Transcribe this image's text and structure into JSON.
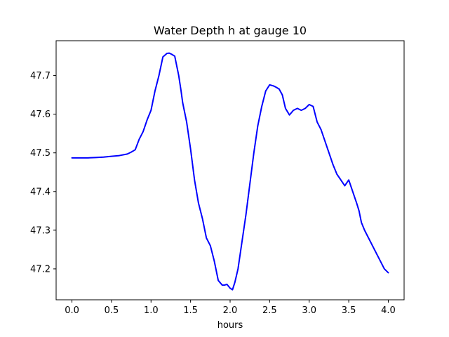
{
  "chart_data": {
    "type": "line",
    "title": "Water Depth h at gauge 10",
    "xlabel": "hours",
    "ylabel": "",
    "xlim": [
      -0.2,
      4.2
    ],
    "ylim": [
      47.12,
      47.79
    ],
    "x_ticks": [
      0.0,
      0.5,
      1.0,
      1.5,
      2.0,
      2.5,
      3.0,
      3.5,
      4.0
    ],
    "x_tick_labels": [
      "0.0",
      "0.5",
      "1.0",
      "1.5",
      "2.0",
      "2.5",
      "3.0",
      "3.5",
      "4.0"
    ],
    "y_ticks": [
      47.2,
      47.3,
      47.4,
      47.5,
      47.6,
      47.7
    ],
    "y_tick_labels": [
      "47.2",
      "47.3",
      "47.4",
      "47.5",
      "47.6",
      "47.7"
    ],
    "grid": false,
    "legend": "none",
    "series": [
      {
        "color": "#0000ff",
        "x": [
          0.0,
          0.1,
          0.2,
          0.3,
          0.4,
          0.5,
          0.6,
          0.7,
          0.75,
          0.8,
          0.85,
          0.9,
          0.95,
          1.0,
          1.05,
          1.1,
          1.15,
          1.2,
          1.23,
          1.26,
          1.3,
          1.35,
          1.38,
          1.4,
          1.45,
          1.5,
          1.55,
          1.6,
          1.65,
          1.7,
          1.75,
          1.8,
          1.85,
          1.9,
          1.93,
          1.96,
          2.0,
          2.03,
          2.06,
          2.1,
          2.15,
          2.2,
          2.25,
          2.3,
          2.35,
          2.4,
          2.45,
          2.5,
          2.55,
          2.58,
          2.62,
          2.66,
          2.7,
          2.75,
          2.8,
          2.85,
          2.9,
          2.95,
          3.0,
          3.05,
          3.1,
          3.15,
          3.2,
          3.25,
          3.3,
          3.35,
          3.4,
          3.45,
          3.5,
          3.55,
          3.6,
          3.63,
          3.66,
          3.7,
          3.75,
          3.8,
          3.85,
          3.9,
          3.95,
          4.0
        ],
        "y": [
          47.487,
          47.487,
          47.487,
          47.488,
          47.489,
          47.491,
          47.493,
          47.497,
          47.502,
          47.508,
          47.535,
          47.555,
          47.585,
          47.61,
          47.66,
          47.7,
          47.748,
          47.757,
          47.758,
          47.755,
          47.75,
          47.7,
          47.66,
          47.63,
          47.58,
          47.51,
          47.43,
          47.37,
          47.33,
          47.28,
          47.26,
          47.22,
          47.17,
          47.158,
          47.158,
          47.16,
          47.15,
          47.146,
          47.165,
          47.2,
          47.27,
          47.34,
          47.42,
          47.5,
          47.57,
          47.62,
          47.66,
          47.676,
          47.673,
          47.67,
          47.665,
          47.65,
          47.615,
          47.598,
          47.61,
          47.615,
          47.61,
          47.615,
          47.625,
          47.62,
          47.58,
          47.56,
          47.53,
          47.5,
          47.47,
          47.445,
          47.43,
          47.415,
          47.43,
          47.4,
          47.37,
          47.35,
          47.32,
          47.3,
          47.28,
          47.26,
          47.24,
          47.22,
          47.2,
          47.19
        ]
      }
    ]
  }
}
